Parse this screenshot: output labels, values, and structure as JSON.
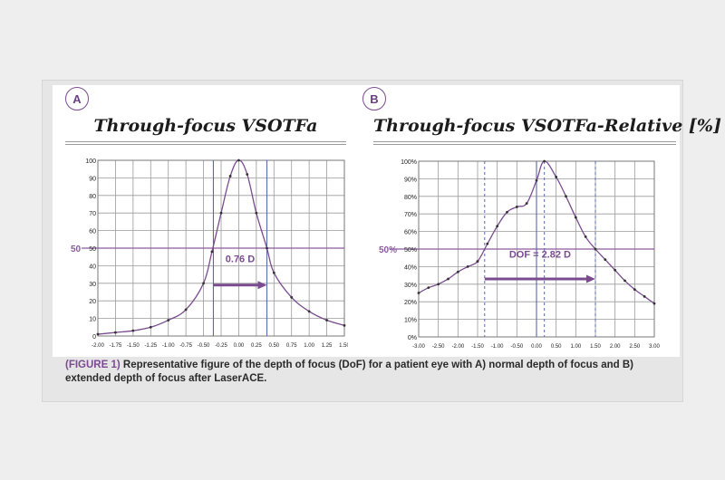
{
  "panels": [
    {
      "badge": "A",
      "title": "Through-focus VSOTFa"
    },
    {
      "badge": "B",
      "title": "Through-focus VSOTFa-Relative [%]"
    }
  ],
  "caption": {
    "lead": "(FIGURE 1)",
    "text": " Representative figure of the depth of focus (DoF) for a patient eye with A) normal depth of focus and B) extended depth of focus after LaserACE."
  },
  "chart_data": [
    {
      "type": "line",
      "title": "Through-focus VSOTFa",
      "xlim": [
        -2.0,
        1.5
      ],
      "ylim": [
        0,
        100
      ],
      "x_ticks": [
        -2.0,
        -1.75,
        -1.5,
        -1.25,
        -1.0,
        -0.75,
        -0.5,
        -0.25,
        0.0,
        0.25,
        0.5,
        0.75,
        1.0,
        1.25,
        1.5
      ],
      "x_tick_labels": [
        "-2.00",
        "-1.75",
        "-1.50",
        "-1.25",
        "-1.00",
        "-0.75",
        "-0.50",
        "-0.25",
        "0.00",
        "0.25",
        "0.50",
        "0.75",
        "1.00",
        "1.25",
        "1.50"
      ],
      "y_ticks": [
        0,
        10,
        20,
        30,
        40,
        50,
        60,
        70,
        80,
        90,
        100
      ],
      "y_tick_labels": [
        "0",
        "10",
        "20",
        "30",
        "40",
        "50",
        "60",
        "70",
        "80",
        "90",
        "100"
      ],
      "grid": true,
      "threshold": {
        "value": 50,
        "label": "50",
        "color": "#8a5a9e"
      },
      "dof_lines": [
        -0.36,
        0.4
      ],
      "solid_vlines": [
        -0.36,
        0.4
      ],
      "annotation": {
        "text": "0.76 D",
        "arrow_from": -0.36,
        "arrow_to": 0.4,
        "arrow_y": 29,
        "label_y": 42
      },
      "series": [
        {
          "x": [
            -2.0,
            -1.75,
            -1.5,
            -1.25,
            -1.0,
            -0.75,
            -0.5,
            -0.38,
            -0.25,
            -0.12,
            0.0,
            0.12,
            0.25,
            0.4,
            0.5,
            0.75,
            1.0,
            1.25,
            1.5
          ],
          "y": [
            1,
            2,
            3,
            5,
            9,
            15,
            30,
            48,
            70,
            91,
            100,
            92,
            70,
            50,
            36,
            22,
            14,
            9,
            6
          ]
        }
      ]
    },
    {
      "type": "line",
      "title": "Through-focus VSOTFa-Relative [%]",
      "xlim": [
        -3.0,
        3.0
      ],
      "ylim": [
        0,
        100
      ],
      "x_ticks": [
        -3.0,
        -2.5,
        -2.0,
        -1.5,
        -1.0,
        -0.5,
        0.0,
        0.5,
        1.0,
        1.5,
        2.0,
        2.5,
        3.0
      ],
      "x_tick_labels": [
        "-3.00",
        "-2.50",
        "-2.00",
        "-1.50",
        "-1.00",
        "-0.50",
        "0.00",
        "0.50",
        "1.00",
        "1.50",
        "2.00",
        "2.50",
        "3.00"
      ],
      "y_ticks": [
        0,
        10,
        20,
        30,
        40,
        50,
        60,
        70,
        80,
        90,
        100
      ],
      "y_tick_labels": [
        "0%",
        "10%",
        "20%",
        "30%",
        "40%",
        "50%",
        "60%",
        "70%",
        "80%",
        "90%",
        "100%"
      ],
      "grid": true,
      "threshold": {
        "value": 50,
        "label": "50%",
        "color": "#8a5a9e"
      },
      "dof_lines": [
        -1.32,
        1.5
      ],
      "solid_vlines": [
        0.0
      ],
      "dashed_vlines": [
        -1.32,
        0.2,
        1.5
      ],
      "annotation": {
        "text": "DOF = 2.82 D",
        "arrow_from": -1.32,
        "arrow_to": 1.5,
        "arrow_y": 33,
        "label_y": 45
      },
      "series": [
        {
          "x": [
            -3.0,
            -2.75,
            -2.5,
            -2.25,
            -2.0,
            -1.75,
            -1.5,
            -1.25,
            -1.0,
            -0.75,
            -0.5,
            -0.25,
            0.0,
            0.2,
            0.5,
            0.75,
            1.0,
            1.25,
            1.5,
            1.75,
            2.0,
            2.25,
            2.5,
            2.75,
            3.0
          ],
          "y": [
            25,
            28,
            30,
            33,
            37,
            40,
            43,
            53,
            63,
            71,
            74,
            76,
            89,
            100,
            91,
            80,
            68,
            57,
            50,
            44,
            38,
            32,
            27,
            23,
            19
          ]
        }
      ]
    }
  ]
}
